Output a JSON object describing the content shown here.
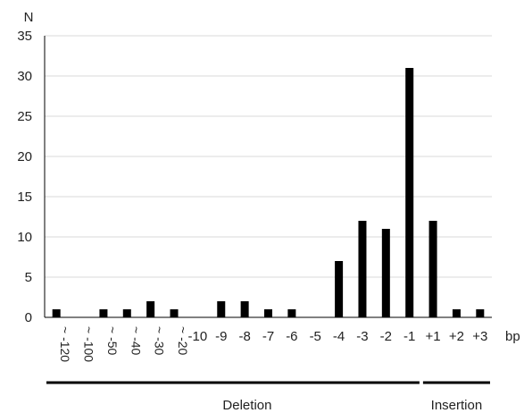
{
  "chart_data": {
    "type": "bar",
    "ylabel": "N",
    "xlabel": "bp",
    "ylim": [
      0,
      35
    ],
    "yticks": [
      0,
      5,
      10,
      15,
      20,
      25,
      30,
      35
    ],
    "grid": true,
    "categories": [
      "~ -120",
      "~ -100",
      "~ -50",
      "~ -40",
      "~ -30",
      "~ -20",
      "-10",
      "-9",
      "-8",
      "-7",
      "-6",
      "-5",
      "-4",
      "-3",
      "-2",
      "-1",
      "+1",
      "+2",
      "+3"
    ],
    "values": [
      1,
      0,
      1,
      1,
      2,
      1,
      0,
      2,
      2,
      1,
      1,
      0,
      7,
      12,
      11,
      31,
      12,
      1,
      1
    ],
    "bar_color": "#000000",
    "grid_color": "#d9d9d9",
    "groups": [
      {
        "label": "Deletion",
        "from": 0,
        "to": 15
      },
      {
        "label": "Insertion",
        "from": 16,
        "to": 18
      }
    ]
  }
}
